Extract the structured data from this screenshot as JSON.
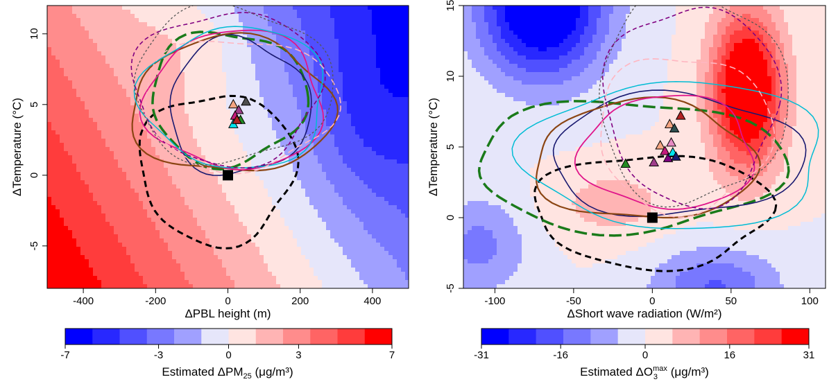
{
  "chart_data": [
    {
      "type": "heatmap",
      "xlabel": "ΔPBL height (m)",
      "ylabel": "ΔTemperature (°C)",
      "xlim": [
        -500,
        500
      ],
      "ylim": [
        -8,
        12
      ],
      "x_ticks": [
        -400,
        -200,
        0,
        200,
        400
      ],
      "y_ticks": [
        -5,
        0,
        5,
        10
      ],
      "grid": false,
      "colorbar": {
        "label_prefix": "Estimated ΔPM",
        "label_sub": "25",
        "label_units": "(μg/m³)",
        "range": [
          -7,
          7
        ],
        "ticks": [
          "-7",
          "-3",
          "0",
          "3",
          "7"
        ],
        "tick_values": [
          -7,
          -3,
          0,
          3,
          7
        ],
        "colors": [
          "#0000ff",
          "#2828ff",
          "#5050ff",
          "#7878ff",
          "#a0a0ff",
          "#e6e6fa",
          "#ffe4e1",
          "#ffb4b4",
          "#ff8c8c",
          "#ff6464",
          "#ff3c3c",
          "#ff0000"
        ]
      },
      "field": {
        "a": -0.0085,
        "b": -0.25,
        "c": 2.5,
        "scale": 8.0
      },
      "contours": [
        {
          "color": "#000000",
          "dash": "9,6",
          "width": 3,
          "cx": -30,
          "cy": 0.5,
          "rx": 215,
          "ry": 5.3
        },
        {
          "color": "#1a7a1a",
          "dash": "18,7",
          "width": 3.5,
          "cx": 0,
          "cy": 5.5,
          "rx": 215,
          "ry": 4.7
        },
        {
          "color": "#191970",
          "dash": "",
          "width": 1.6,
          "cx": 30,
          "cy": 4.8,
          "rx": 195,
          "ry": 4.8
        },
        {
          "color": "#8b4513",
          "dash": "",
          "width": 2.2,
          "cx": 10,
          "cy": 4.9,
          "rx": 280,
          "ry": 4.8
        },
        {
          "color": "#e0158a",
          "dash": "",
          "width": 1.8,
          "cx": 20,
          "cy": 5.3,
          "rx": 245,
          "ry": 4.9
        },
        {
          "color": "#00bcd4",
          "dash": "",
          "width": 1.5,
          "cx": 20,
          "cy": 5.5,
          "rx": 255,
          "ry": 5.0
        },
        {
          "color": "#800080",
          "dash": "6,4",
          "width": 1.6,
          "cx": 0,
          "cy": 6.2,
          "rx": 260,
          "ry": 5.4
        },
        {
          "color": "#ffb6c1",
          "dash": "9,5",
          "width": 1.6,
          "cx": 30,
          "cy": 5.1,
          "rx": 270,
          "ry": 4.6
        },
        {
          "color": "#555555",
          "dash": "3,3",
          "width": 1.3,
          "cx": 10,
          "cy": 6.4,
          "rx": 275,
          "ry": 5.5
        }
      ],
      "points": [
        {
          "x": 0,
          "y": 0,
          "shape": "square",
          "color": "#000000"
        },
        {
          "x": 15,
          "y": 5.0,
          "shape": "triangle",
          "color": "#f4a582"
        },
        {
          "x": 30,
          "y": 4.6,
          "shape": "triangle",
          "color": "#9e3d8a"
        },
        {
          "x": 20,
          "y": 4.2,
          "shape": "triangle",
          "color": "#c51b7d"
        },
        {
          "x": 35,
          "y": 3.9,
          "shape": "triangle",
          "color": "#228b22"
        },
        {
          "x": 15,
          "y": 3.6,
          "shape": "triangle",
          "color": "#00e5ee"
        },
        {
          "x": 50,
          "y": 5.2,
          "shape": "triangle",
          "color": "#4d4d4d"
        },
        {
          "x": 25,
          "y": 3.9,
          "shape": "triangle",
          "color": "#b22222"
        }
      ]
    },
    {
      "type": "heatmap",
      "xlabel": "ΔShort wave radiation (W/m²)",
      "ylabel": "ΔTemperature (°C)",
      "xlim": [
        -120,
        110
      ],
      "ylim": [
        -5,
        15
      ],
      "x_ticks": [
        -100,
        -50,
        0,
        50,
        100
      ],
      "y_ticks": [
        -5,
        0,
        5,
        10,
        15
      ],
      "grid": false,
      "colorbar": {
        "label_prefix": "Estimated ΔO",
        "label_sub": "3",
        "label_sup": "max",
        "label_units": "(μg/m³)",
        "range": [
          -31,
          31
        ],
        "ticks": [
          "-31",
          "-16",
          "0",
          "16",
          "31"
        ],
        "tick_values": [
          -31,
          -16,
          0,
          16,
          31
        ],
        "colors": [
          "#0000ff",
          "#2828ff",
          "#5050ff",
          "#7878ff",
          "#a0a0ff",
          "#e6e6fa",
          "#ffe4e1",
          "#ffb4b4",
          "#ff8c8c",
          "#ff6464",
          "#ff3c3c",
          "#ff0000"
        ]
      },
      "contours": [
        {
          "color": "#000000",
          "dash": "9,6",
          "width": 3,
          "cx": 0,
          "cy": 0.5,
          "rx": 75,
          "ry": 4.0
        },
        {
          "color": "#1a7a1a",
          "dash": "18,7",
          "width": 3.5,
          "cx": -15,
          "cy": 3.7,
          "rx": 98,
          "ry": 4.6
        },
        {
          "color": "#191970",
          "dash": "",
          "width": 1.6,
          "cx": 15,
          "cy": 4.4,
          "rx": 80,
          "ry": 4.3
        },
        {
          "color": "#8b4513",
          "dash": "",
          "width": 2.2,
          "cx": -5,
          "cy": 4.0,
          "rx": 70,
          "ry": 4.2
        },
        {
          "color": "#e0158a",
          "dash": "",
          "width": 1.8,
          "cx": 10,
          "cy": 4.6,
          "rx": 55,
          "ry": 4.0
        },
        {
          "color": "#00bcd4",
          "dash": "",
          "width": 1.5,
          "cx": 15,
          "cy": 4.4,
          "rx": 95,
          "ry": 5.2
        },
        {
          "color": "#800080",
          "dash": "6,4",
          "width": 1.6,
          "cx": 25,
          "cy": 8.0,
          "rx": 55,
          "ry": 7.0
        },
        {
          "color": "#ffb6c1",
          "dash": "9,5",
          "width": 1.6,
          "cx": 20,
          "cy": 6.0,
          "rx": 55,
          "ry": 5.5
        },
        {
          "color": "#555555",
          "dash": "3,3",
          "width": 1.3,
          "cx": 25,
          "cy": 8.5,
          "rx": 60,
          "ry": 7.5
        }
      ],
      "points": [
        {
          "x": 0,
          "y": 0,
          "shape": "square",
          "color": "#000000"
        },
        {
          "x": -17,
          "y": 3.8,
          "shape": "triangle",
          "color": "#228b22"
        },
        {
          "x": 1,
          "y": 3.9,
          "shape": "triangle",
          "color": "#9e3d8a"
        },
        {
          "x": 5,
          "y": 5.1,
          "shape": "triangle",
          "color": "#f4a582"
        },
        {
          "x": 8,
          "y": 4.7,
          "shape": "triangle",
          "color": "#c51b7d"
        },
        {
          "x": 10,
          "y": 4.2,
          "shape": "triangle",
          "color": "#800080"
        },
        {
          "x": 13,
          "y": 4.6,
          "shape": "triangle",
          "color": "#00e5ee"
        },
        {
          "x": 15,
          "y": 4.3,
          "shape": "triangle",
          "color": "#191970"
        },
        {
          "x": 11,
          "y": 6.6,
          "shape": "triangle",
          "color": "#f4a582"
        },
        {
          "x": 14,
          "y": 6.3,
          "shape": "triangle",
          "color": "#2f4f4f"
        },
        {
          "x": 18,
          "y": 7.2,
          "shape": "triangle",
          "color": "#b22222"
        },
        {
          "x": 12,
          "y": 5.3,
          "shape": "triangle",
          "color": "#e78ac3"
        }
      ]
    }
  ]
}
